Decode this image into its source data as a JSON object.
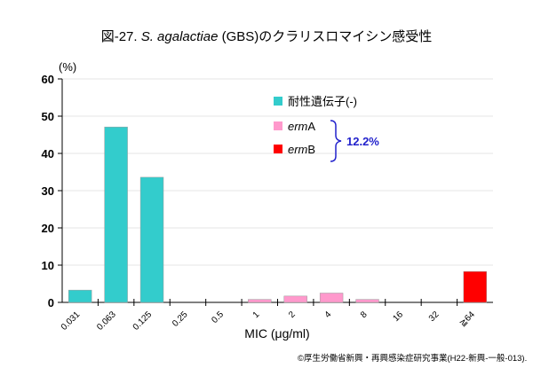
{
  "chart_data": {
    "type": "bar",
    "title_prefix": "図-27. ",
    "title_species": "S. agalactiae",
    "title_suffix": " (GBS)のクラリスロマイシン感受性",
    "ylabel": "(%)",
    "xlabel": "MIC (μg/ml)",
    "ylim": [
      0,
      60
    ],
    "yticks": [
      0,
      10,
      20,
      30,
      40,
      50,
      60
    ],
    "categories": [
      "0.031",
      "0.063",
      "0.125",
      "0.25",
      "0.5",
      "1",
      "2",
      "4",
      "8",
      "16",
      "32",
      "≧64"
    ],
    "series": [
      {
        "name": "耐性遺伝子(-)",
        "color": "#33CCCC",
        "values": [
          3.3,
          47.1,
          33.6,
          0,
          0,
          0,
          0,
          0,
          0,
          0,
          0,
          0
        ]
      },
      {
        "name": "ermA",
        "color": "#FF99CC",
        "values": [
          0,
          0,
          0,
          0,
          0,
          0.8,
          1.7,
          2.5,
          0.8,
          0,
          0,
          0
        ]
      },
      {
        "name": "ermB",
        "color": "#FF0000",
        "values": [
          0,
          0,
          0,
          0,
          0,
          0,
          0,
          0,
          0,
          0,
          0,
          8.3
        ]
      }
    ],
    "legend_position": "top-right",
    "annotation": "12.2%",
    "grid": true
  },
  "footer": "©厚生労働省新興・再興感染症研究事業(H22-新興-一般-013)."
}
